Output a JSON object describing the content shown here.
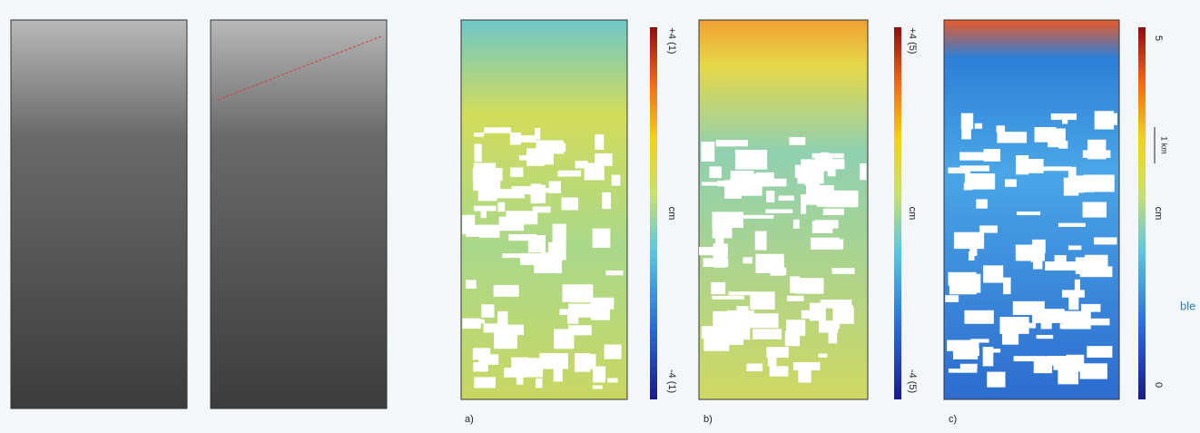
{
  "panels": {
    "a": {
      "label": "a)",
      "unit": "cm",
      "max": "+4 (1)",
      "min": "-4 (1)"
    },
    "b": {
      "label": "b)",
      "unit": "cm",
      "max": "+4 (5)",
      "min": "-4 (5)"
    },
    "c": {
      "label": "c)",
      "unit": "cm",
      "max": "5",
      "min": "0",
      "scale": "1 km"
    }
  },
  "edge_text": "ble"
}
